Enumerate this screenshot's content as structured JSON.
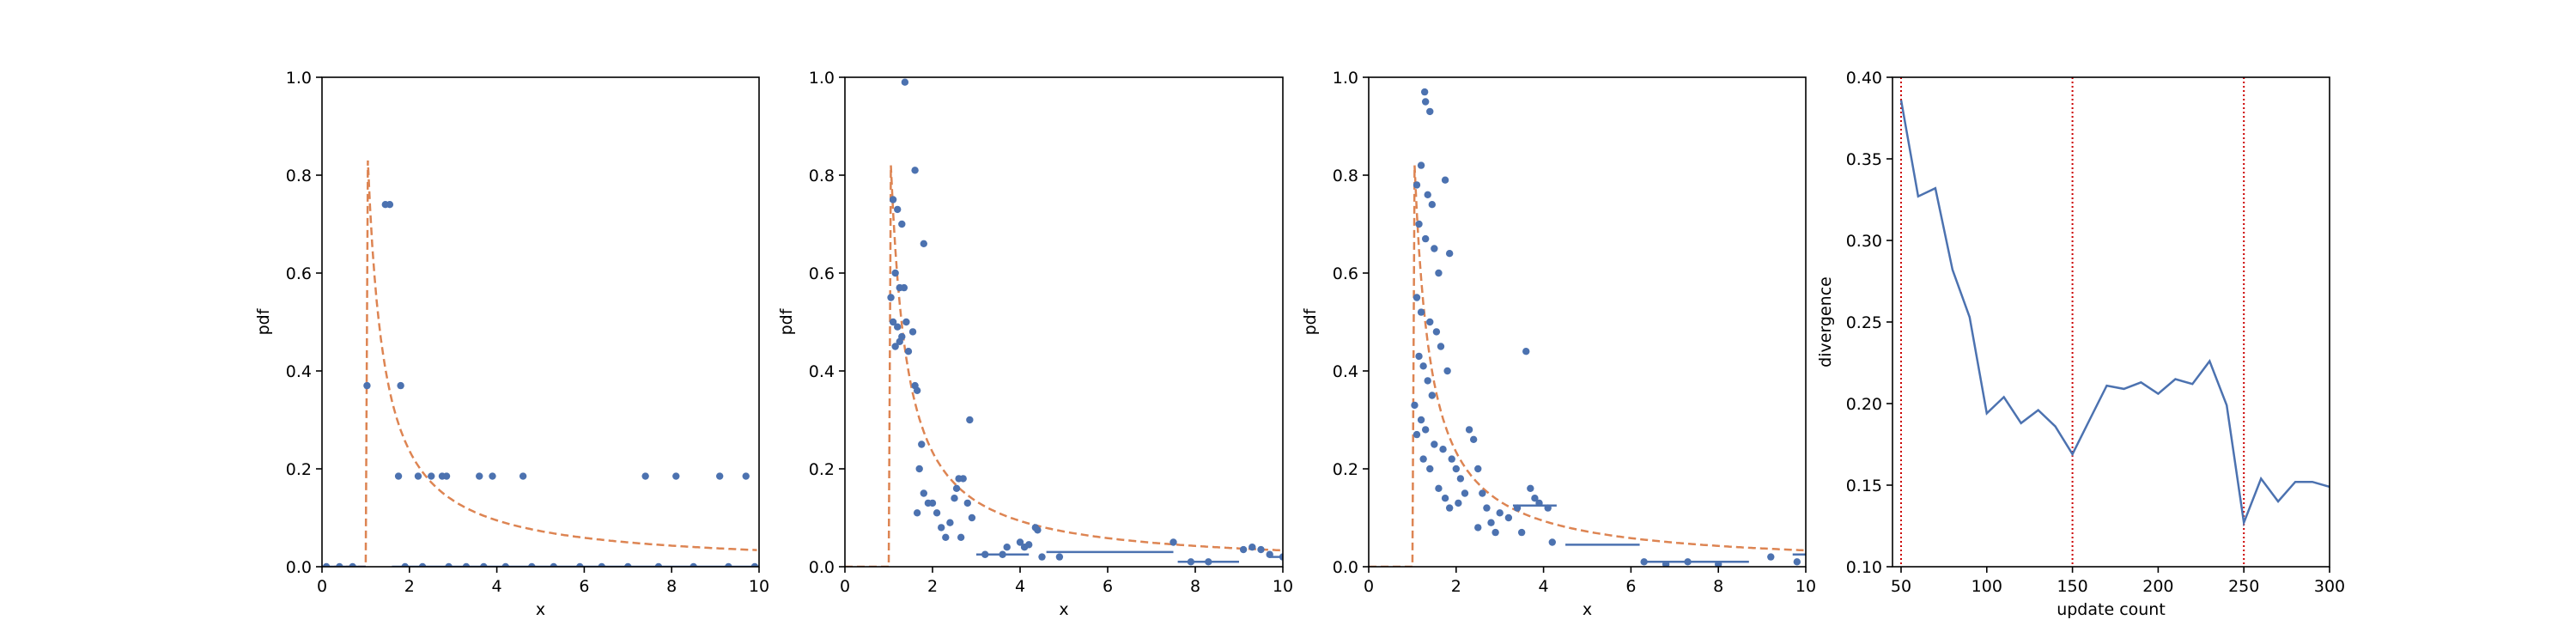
{
  "colors": {
    "points": "#4c72b0",
    "theory": "#dd8452",
    "divergence_line": "#4c72b0",
    "markers": "#cc0000",
    "axes": "#000000",
    "background": "#ffffff"
  },
  "chart_data": [
    {
      "type": "scatter",
      "xlabel": "x",
      "ylabel": "pdf",
      "xlim": [
        0,
        10
      ],
      "ylim": [
        0,
        1.0
      ],
      "xticks": [
        "0",
        "2",
        "4",
        "6",
        "8",
        "10"
      ],
      "yticks": [
        "0.0",
        "0.2",
        "0.4",
        "0.6",
        "0.8",
        "1.0"
      ],
      "grid": false,
      "theory_curve": {
        "style": "dashed",
        "onset": 1.0,
        "peak": 0.83
      },
      "points": [
        [
          1.03,
          0.37
        ],
        [
          1.45,
          0.74
        ],
        [
          1.55,
          0.74
        ],
        [
          1.8,
          0.37
        ],
        [
          1.75,
          0.185
        ],
        [
          2.2,
          0.185
        ],
        [
          2.5,
          0.185
        ],
        [
          2.75,
          0.185
        ],
        [
          2.85,
          0.185
        ],
        [
          3.6,
          0.185
        ],
        [
          3.9,
          0.185
        ],
        [
          4.6,
          0.185
        ],
        [
          7.4,
          0.185
        ],
        [
          8.1,
          0.185
        ],
        [
          9.1,
          0.185
        ],
        [
          9.7,
          0.185
        ],
        [
          0.1,
          0.0
        ],
        [
          0.4,
          0.0
        ],
        [
          0.7,
          0.0
        ],
        [
          1.9,
          0.0
        ],
        [
          2.3,
          0.0
        ],
        [
          2.9,
          0.0
        ],
        [
          3.3,
          0.0
        ],
        [
          3.7,
          0.0
        ],
        [
          4.2,
          0.0
        ],
        [
          4.8,
          0.0
        ],
        [
          5.3,
          0.0
        ],
        [
          5.9,
          0.0
        ],
        [
          6.4,
          0.0
        ],
        [
          7.0,
          0.0
        ],
        [
          7.7,
          0.0
        ],
        [
          8.5,
          0.0
        ],
        [
          9.3,
          0.0
        ],
        [
          9.9,
          0.0
        ]
      ],
      "segments": [
        [
          0,
          1.0,
          0.0
        ],
        [
          1.6,
          10,
          0.0
        ]
      ]
    },
    {
      "type": "scatter",
      "xlabel": "x",
      "ylabel": "pdf",
      "xlim": [
        0,
        10
      ],
      "ylim": [
        0,
        1.0
      ],
      "xticks": [
        "0",
        "2",
        "4",
        "6",
        "8",
        "10"
      ],
      "yticks": [
        "0.0",
        "0.2",
        "0.4",
        "0.6",
        "0.8",
        "1.0"
      ],
      "grid": false,
      "theory_curve": {
        "style": "dashed",
        "onset": 1.0,
        "peak": 0.82
      },
      "points": [
        [
          1.37,
          0.99
        ],
        [
          1.6,
          0.81
        ],
        [
          1.1,
          0.75
        ],
        [
          1.2,
          0.73
        ],
        [
          1.3,
          0.7
        ],
        [
          1.15,
          0.6
        ],
        [
          1.25,
          0.57
        ],
        [
          1.35,
          0.57
        ],
        [
          1.8,
          0.66
        ],
        [
          1.05,
          0.55
        ],
        [
          1.1,
          0.5
        ],
        [
          1.2,
          0.49
        ],
        [
          1.3,
          0.47
        ],
        [
          1.4,
          0.5
        ],
        [
          1.15,
          0.45
        ],
        [
          1.25,
          0.46
        ],
        [
          1.45,
          0.44
        ],
        [
          1.55,
          0.48
        ],
        [
          1.6,
          0.37
        ],
        [
          1.65,
          0.36
        ],
        [
          1.75,
          0.25
        ],
        [
          1.7,
          0.2
        ],
        [
          1.8,
          0.15
        ],
        [
          1.65,
          0.11
        ],
        [
          1.9,
          0.13
        ],
        [
          2.0,
          0.13
        ],
        [
          2.1,
          0.11
        ],
        [
          2.2,
          0.08
        ],
        [
          2.3,
          0.06
        ],
        [
          2.4,
          0.09
        ],
        [
          2.5,
          0.14
        ],
        [
          2.6,
          0.18
        ],
        [
          2.7,
          0.18
        ],
        [
          2.55,
          0.16
        ],
        [
          2.8,
          0.13
        ],
        [
          2.9,
          0.1
        ],
        [
          2.65,
          0.06
        ],
        [
          2.85,
          0.3
        ],
        [
          3.2,
          0.025
        ],
        [
          3.6,
          0.025
        ],
        [
          3.7,
          0.04
        ],
        [
          4.0,
          0.05
        ],
        [
          4.1,
          0.04
        ],
        [
          4.2,
          0.045
        ],
        [
          4.35,
          0.08
        ],
        [
          4.4,
          0.075
        ],
        [
          4.5,
          0.02
        ],
        [
          4.9,
          0.02
        ],
        [
          7.5,
          0.05
        ],
        [
          7.9,
          0.01
        ],
        [
          8.3,
          0.01
        ],
        [
          9.1,
          0.035
        ],
        [
          9.3,
          0.04
        ],
        [
          9.5,
          0.035
        ],
        [
          9.7,
          0.025
        ],
        [
          10.0,
          0.02
        ]
      ],
      "segments": [
        [
          3.0,
          4.2,
          0.025
        ],
        [
          4.6,
          7.5,
          0.03
        ],
        [
          7.6,
          9.0,
          0.01
        ],
        [
          9.7,
          10,
          0.02
        ]
      ]
    },
    {
      "type": "scatter",
      "xlabel": "x",
      "ylabel": "pdf",
      "xlim": [
        0,
        10
      ],
      "ylim": [
        0,
        1.0
      ],
      "xticks": [
        "0",
        "2",
        "4",
        "6",
        "8",
        "10"
      ],
      "yticks": [
        "0.0",
        "0.2",
        "0.4",
        "0.6",
        "0.8",
        "1.0"
      ],
      "grid": false,
      "theory_curve": {
        "style": "dashed",
        "onset": 1.0,
        "peak": 0.82
      },
      "points": [
        [
          1.28,
          0.97
        ],
        [
          1.3,
          0.95
        ],
        [
          1.4,
          0.93
        ],
        [
          1.2,
          0.82
        ],
        [
          1.1,
          0.78
        ],
        [
          1.35,
          0.76
        ],
        [
          1.45,
          0.74
        ],
        [
          1.75,
          0.79
        ],
        [
          1.15,
          0.7
        ],
        [
          1.3,
          0.67
        ],
        [
          1.5,
          0.65
        ],
        [
          1.6,
          0.6
        ],
        [
          1.85,
          0.64
        ],
        [
          1.1,
          0.55
        ],
        [
          1.2,
          0.52
        ],
        [
          1.4,
          0.5
        ],
        [
          1.55,
          0.48
        ],
        [
          1.65,
          0.45
        ],
        [
          1.8,
          0.4
        ],
        [
          1.15,
          0.43
        ],
        [
          1.25,
          0.41
        ],
        [
          1.35,
          0.38
        ],
        [
          1.45,
          0.35
        ],
        [
          1.05,
          0.33
        ],
        [
          1.2,
          0.3
        ],
        [
          1.3,
          0.28
        ],
        [
          1.5,
          0.25
        ],
        [
          1.7,
          0.24
        ],
        [
          1.9,
          0.22
        ],
        [
          2.0,
          0.2
        ],
        [
          2.1,
          0.18
        ],
        [
          2.2,
          0.15
        ],
        [
          1.1,
          0.27
        ],
        [
          1.25,
          0.22
        ],
        [
          1.4,
          0.2
        ],
        [
          1.6,
          0.16
        ],
        [
          1.75,
          0.14
        ],
        [
          1.85,
          0.12
        ],
        [
          2.05,
          0.13
        ],
        [
          2.3,
          0.28
        ],
        [
          2.4,
          0.26
        ],
        [
          2.5,
          0.2
        ],
        [
          2.6,
          0.15
        ],
        [
          2.7,
          0.12
        ],
        [
          2.8,
          0.09
        ],
        [
          2.9,
          0.07
        ],
        [
          2.5,
          0.08
        ],
        [
          3.0,
          0.11
        ],
        [
          3.2,
          0.1
        ],
        [
          3.4,
          0.12
        ],
        [
          3.6,
          0.44
        ],
        [
          3.7,
          0.16
        ],
        [
          3.8,
          0.14
        ],
        [
          3.9,
          0.13
        ],
        [
          4.1,
          0.12
        ],
        [
          3.5,
          0.07
        ],
        [
          4.2,
          0.05
        ],
        [
          6.3,
          0.01
        ],
        [
          6.8,
          0.005
        ],
        [
          7.3,
          0.01
        ],
        [
          8.0,
          0.005
        ],
        [
          9.2,
          0.02
        ],
        [
          9.8,
          0.01
        ]
      ],
      "segments": [
        [
          3.3,
          4.3,
          0.125
        ],
        [
          4.5,
          6.2,
          0.045
        ],
        [
          6.3,
          8.7,
          0.01
        ],
        [
          9.7,
          10,
          0.025
        ]
      ]
    },
    {
      "type": "line",
      "xlabel": "update count",
      "ylabel": "divergence",
      "xlim": [
        45,
        300
      ],
      "ylim": [
        0.1,
        0.4
      ],
      "xticks": [
        "50",
        "100",
        "150",
        "200",
        "250",
        "300"
      ],
      "yticks": [
        "0.10",
        "0.15",
        "0.20",
        "0.25",
        "0.30",
        "0.35",
        "0.40"
      ],
      "grid": false,
      "vlines": [
        50,
        150,
        250
      ],
      "x": [
        50,
        60,
        70,
        80,
        90,
        100,
        110,
        120,
        130,
        140,
        150,
        160,
        170,
        180,
        190,
        200,
        210,
        220,
        230,
        240,
        250,
        260,
        270,
        280,
        290,
        300
      ],
      "values": [
        0.386,
        0.327,
        0.332,
        0.282,
        0.253,
        0.194,
        0.204,
        0.188,
        0.196,
        0.186,
        0.169,
        0.19,
        0.211,
        0.209,
        0.213,
        0.206,
        0.215,
        0.212,
        0.226,
        0.199,
        0.127,
        0.154,
        0.14,
        0.152,
        0.152,
        0.149
      ]
    }
  ]
}
